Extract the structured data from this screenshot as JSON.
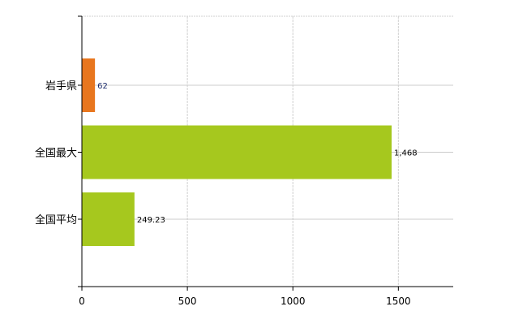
{
  "chart_data": {
    "type": "bar",
    "orientation": "horizontal",
    "categories": [
      "岩手県",
      "全国最大",
      "全国平均"
    ],
    "values": [
      62,
      1468,
      249.23
    ],
    "data_labels": [
      "62",
      "1,468",
      "249.23"
    ],
    "bar_colors": [
      "#e8761e",
      "#a6c81e",
      "#a6c81e"
    ],
    "xlim": [
      0,
      1760
    ],
    "xticks": [
      0,
      500,
      1000,
      1500
    ],
    "xtick_labels": [
      "0",
      "500",
      "1000",
      "1500"
    ],
    "title": "",
    "xlabel": "",
    "ylabel": "",
    "grid": true,
    "legend": "none"
  }
}
